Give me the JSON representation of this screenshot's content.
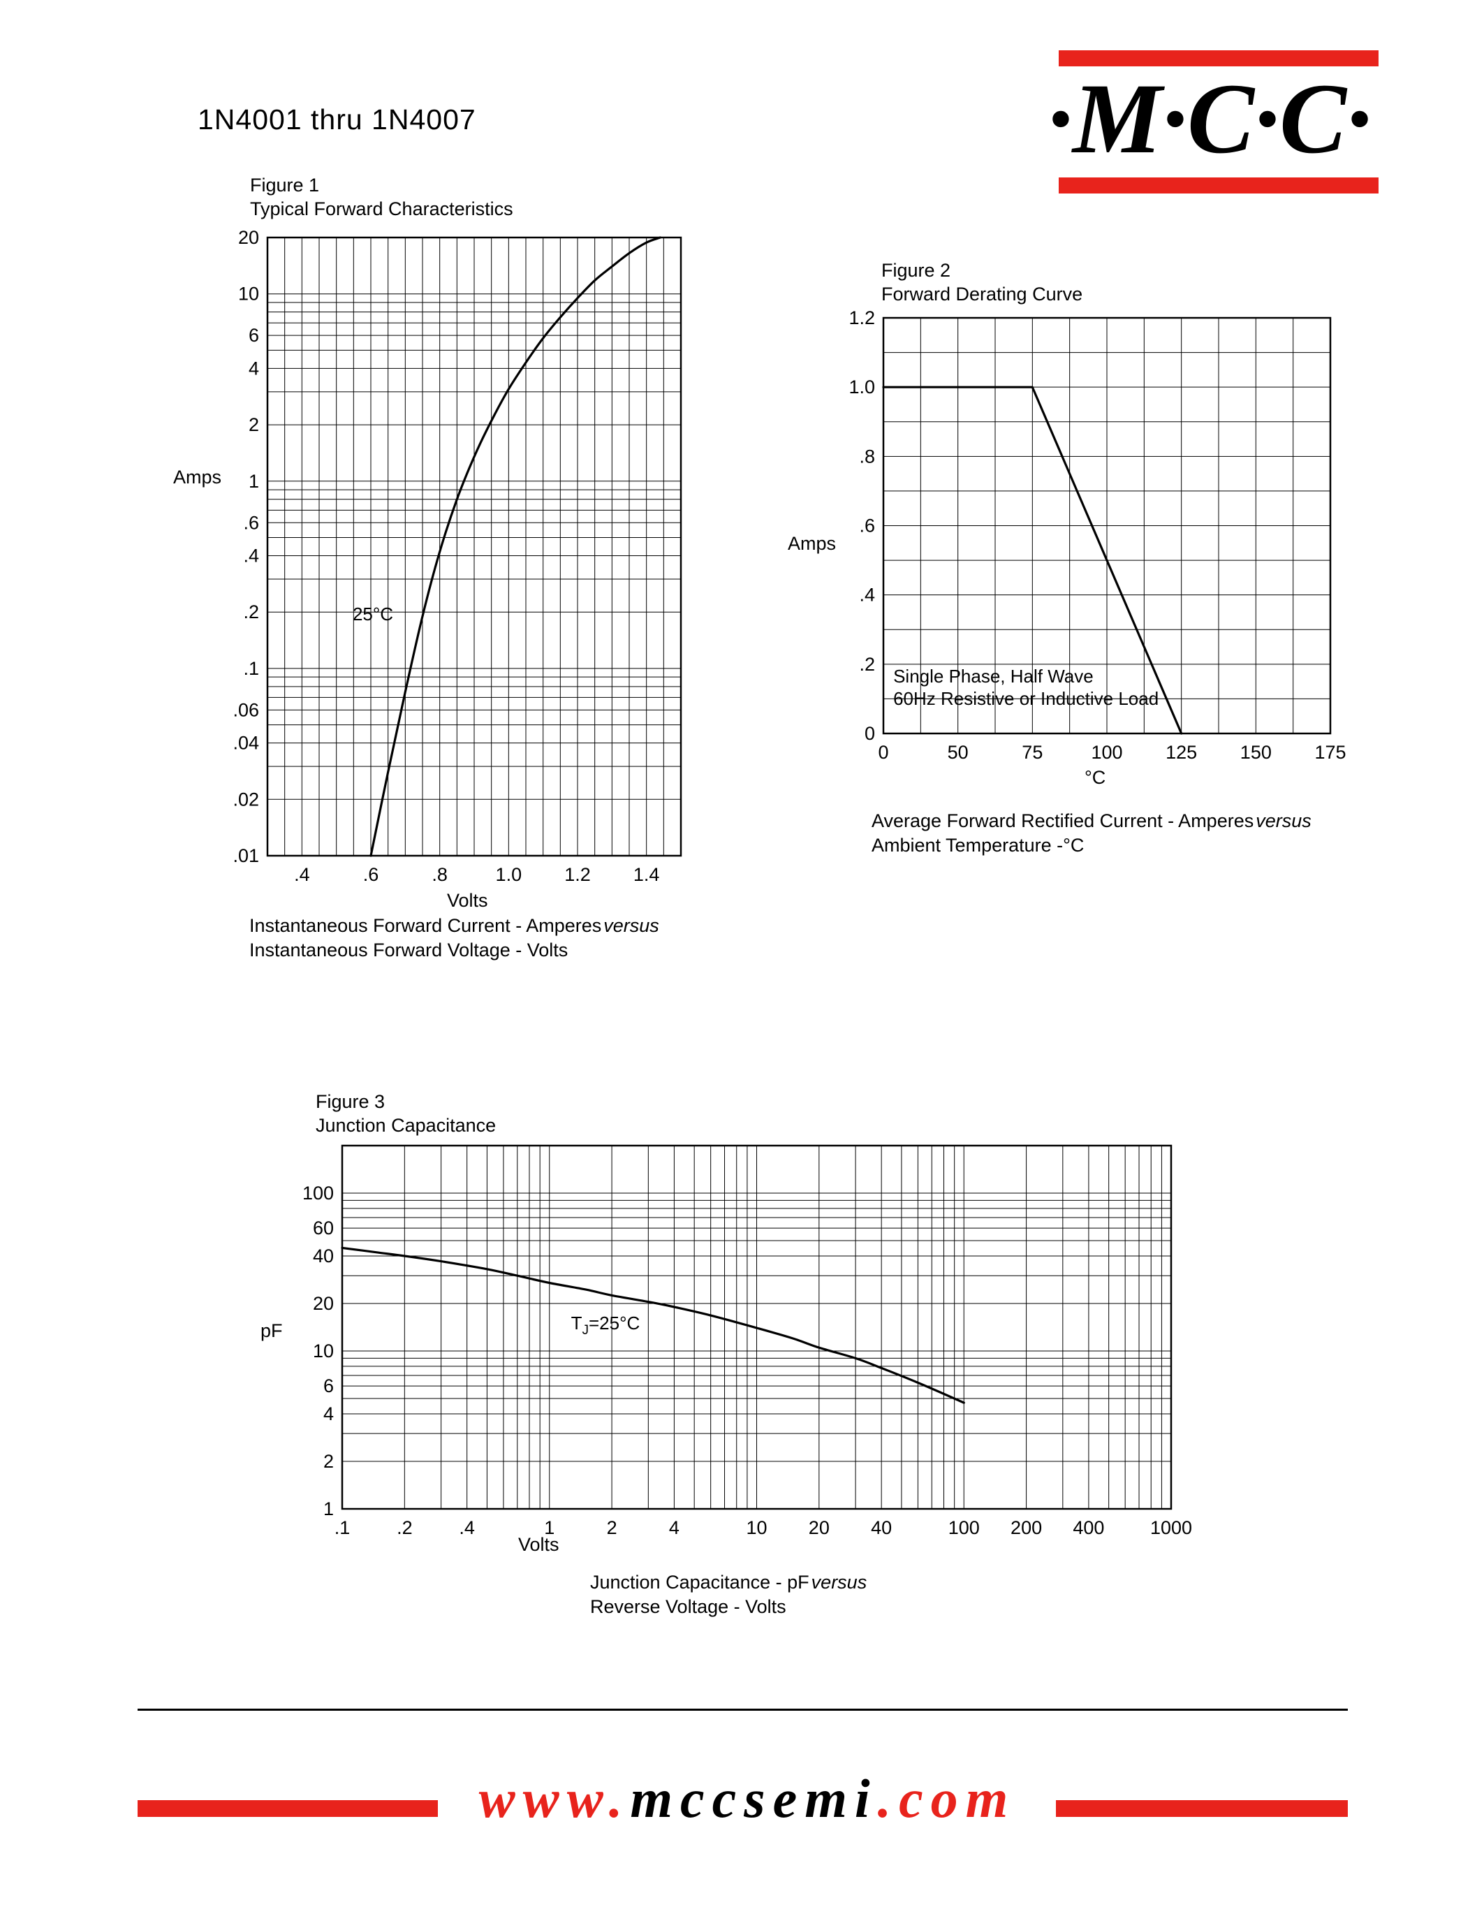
{
  "colors": {
    "accent": "#e8231c",
    "ink": "#000000"
  },
  "header": {
    "part_range": "1N4001 thru 1N4007",
    "logo_text": "·M·C·C·"
  },
  "footer": {
    "www": "www.",
    "domain": "mccsemi",
    "tld": ".com"
  },
  "chart_data": [
    {
      "id": "fig1",
      "type": "line",
      "figure_label": "Figure 1",
      "figure_title": "Typical Forward Characteristics",
      "xlabel": "Volts",
      "ylabel": "Amps",
      "x_axis": {
        "scale": "linear",
        "min": 0.3,
        "max": 1.5,
        "minor_step": 0.05,
        "ticks": [
          {
            "v": 0.4,
            "label": ".4"
          },
          {
            "v": 0.6,
            "label": ".6"
          },
          {
            "v": 0.8,
            "label": ".8"
          },
          {
            "v": 1.0,
            "label": "1.0"
          },
          {
            "v": 1.2,
            "label": "1.2"
          },
          {
            "v": 1.4,
            "label": "1.4"
          }
        ]
      },
      "y_axis": {
        "scale": "log",
        "min": 0.01,
        "max": 20,
        "ticks": [
          {
            "v": 20,
            "label": "20"
          },
          {
            "v": 10,
            "label": "10"
          },
          {
            "v": 6,
            "label": "6"
          },
          {
            "v": 4,
            "label": "4"
          },
          {
            "v": 2,
            "label": "2"
          },
          {
            "v": 1,
            "label": "1"
          },
          {
            "v": 0.6,
            "label": ".6"
          },
          {
            "v": 0.4,
            "label": ".4"
          },
          {
            "v": 0.2,
            "label": ".2"
          },
          {
            "v": 0.1,
            "label": ".1"
          },
          {
            "v": 0.06,
            "label": ".06"
          },
          {
            "v": 0.04,
            "label": ".04"
          },
          {
            "v": 0.02,
            "label": ".02"
          },
          {
            "v": 0.01,
            "label": ".01"
          }
        ]
      },
      "series": [
        {
          "name": "forward-current-25C",
          "smooth": true,
          "points": [
            [
              0.6,
              0.01
            ],
            [
              0.65,
              0.028
            ],
            [
              0.7,
              0.075
            ],
            [
              0.75,
              0.19
            ],
            [
              0.8,
              0.42
            ],
            [
              0.85,
              0.8
            ],
            [
              0.9,
              1.35
            ],
            [
              0.95,
              2.1
            ],
            [
              1.0,
              3.1
            ],
            [
              1.05,
              4.3
            ],
            [
              1.1,
              5.8
            ],
            [
              1.15,
              7.5
            ],
            [
              1.2,
              9.5
            ],
            [
              1.25,
              11.8
            ],
            [
              1.3,
              14
            ],
            [
              1.35,
              16.5
            ],
            [
              1.4,
              18.8
            ],
            [
              1.44,
              20
            ]
          ]
        }
      ],
      "annotations": [
        {
          "text": "25°C",
          "fx": 0.206,
          "fy": 0.619
        }
      ],
      "caption": [
        {
          "main": "Instantaneous Forward Current - Amperes",
          "versus": "versus"
        },
        {
          "main": "Instantaneous Forward Voltage - Volts"
        }
      ]
    },
    {
      "id": "fig2",
      "type": "line",
      "figure_label": "Figure 2",
      "figure_title": "Forward Derating Curve",
      "xlabel": "°C",
      "ylabel": "Amps",
      "x_axis": {
        "scale": "ticks",
        "ticks": [
          {
            "v": 0,
            "label": "0"
          },
          {
            "v": 50,
            "label": "50"
          },
          {
            "v": 75,
            "label": "75"
          },
          {
            "v": 100,
            "label": "100"
          },
          {
            "v": 125,
            "label": "125"
          },
          {
            "v": 150,
            "label": "150"
          },
          {
            "v": 175,
            "label": "175"
          }
        ]
      },
      "y_axis": {
        "scale": "linear",
        "min": 0,
        "max": 1.2,
        "minor_step": 0.1,
        "ticks": [
          {
            "v": 1.2,
            "label": "1.2"
          },
          {
            "v": 1.0,
            "label": "1.0"
          },
          {
            "v": 0.8,
            "label": ".8"
          },
          {
            "v": 0.6,
            "label": ".6"
          },
          {
            "v": 0.4,
            "label": ".4"
          },
          {
            "v": 0.2,
            "label": ".2"
          },
          {
            "v": 0,
            "label": "0"
          }
        ]
      },
      "series": [
        {
          "name": "derating",
          "smooth": false,
          "points": [
            [
              0,
              1.0
            ],
            [
              75,
              1.0
            ],
            [
              125,
              0
            ]
          ]
        }
      ],
      "annotations": [
        {
          "text": "Single Phase, Half Wave",
          "fx": 0.022,
          "fy": 0.877
        },
        {
          "text": "60Hz Resistive or Inductive Load",
          "fx": 0.022,
          "fy": 0.931
        }
      ],
      "caption": [
        {
          "main": "Average Forward Rectified Current  -  Amperes",
          "versus": "versus"
        },
        {
          "main": "Ambient Temperature  -°C"
        }
      ]
    },
    {
      "id": "fig3",
      "type": "line",
      "figure_label": "Figure 3",
      "figure_title": "Junction Capacitance",
      "xlabel": "Volts",
      "ylabel": "pF",
      "x_axis": {
        "scale": "log",
        "min": 0.1,
        "max": 1000,
        "ticks": [
          {
            "v": 0.1,
            "label": ".1"
          },
          {
            "v": 0.2,
            "label": ".2"
          },
          {
            "v": 0.4,
            "label": ".4"
          },
          {
            "v": 1,
            "label": "1"
          },
          {
            "v": 2,
            "label": "2"
          },
          {
            "v": 4,
            "label": "4"
          },
          {
            "v": 10,
            "label": "10"
          },
          {
            "v": 20,
            "label": "20"
          },
          {
            "v": 40,
            "label": "40"
          },
          {
            "v": 100,
            "label": "100"
          },
          {
            "v": 200,
            "label": "200"
          },
          {
            "v": 400,
            "label": "400"
          },
          {
            "v": 1000,
            "label": "1000"
          }
        ]
      },
      "y_axis": {
        "scale": "log",
        "min": 1,
        "max": 200,
        "ticks": [
          {
            "v": 100,
            "label": "100"
          },
          {
            "v": 60,
            "label": "60"
          },
          {
            "v": 40,
            "label": "40"
          },
          {
            "v": 20,
            "label": "20"
          },
          {
            "v": 10,
            "label": "10"
          },
          {
            "v": 6,
            "label": "6"
          },
          {
            "v": 4,
            "label": "4"
          },
          {
            "v": 2,
            "label": "2"
          },
          {
            "v": 1,
            "label": "1"
          }
        ]
      },
      "series": [
        {
          "name": "junction-capacitance",
          "smooth": true,
          "points": [
            [
              0.1,
              45
            ],
            [
              0.15,
              42
            ],
            [
              0.2,
              40
            ],
            [
              0.3,
              37
            ],
            [
              0.5,
              33
            ],
            [
              0.7,
              30
            ],
            [
              1,
              27
            ],
            [
              1.5,
              24.5
            ],
            [
              2,
              22.5
            ],
            [
              3,
              20.5
            ],
            [
              4,
              19
            ],
            [
              6,
              16.8
            ],
            [
              10,
              14
            ],
            [
              15,
              12
            ],
            [
              20,
              10.5
            ],
            [
              30,
              9
            ],
            [
              40,
              7.8
            ],
            [
              60,
              6.3
            ],
            [
              100,
              4.7
            ]
          ]
        }
      ],
      "annotations": [
        {
          "parts": [
            {
              "t": "T"
            },
            {
              "t": "J",
              "sub": true
            },
            {
              "t": "=25°C"
            }
          ],
          "fx": 0.276,
          "fy": 0.506
        }
      ],
      "caption": [
        {
          "main": "Junction Capacitance - pF",
          "versus": "versus"
        },
        {
          "main": "Reverse Voltage - Volts"
        }
      ]
    }
  ]
}
